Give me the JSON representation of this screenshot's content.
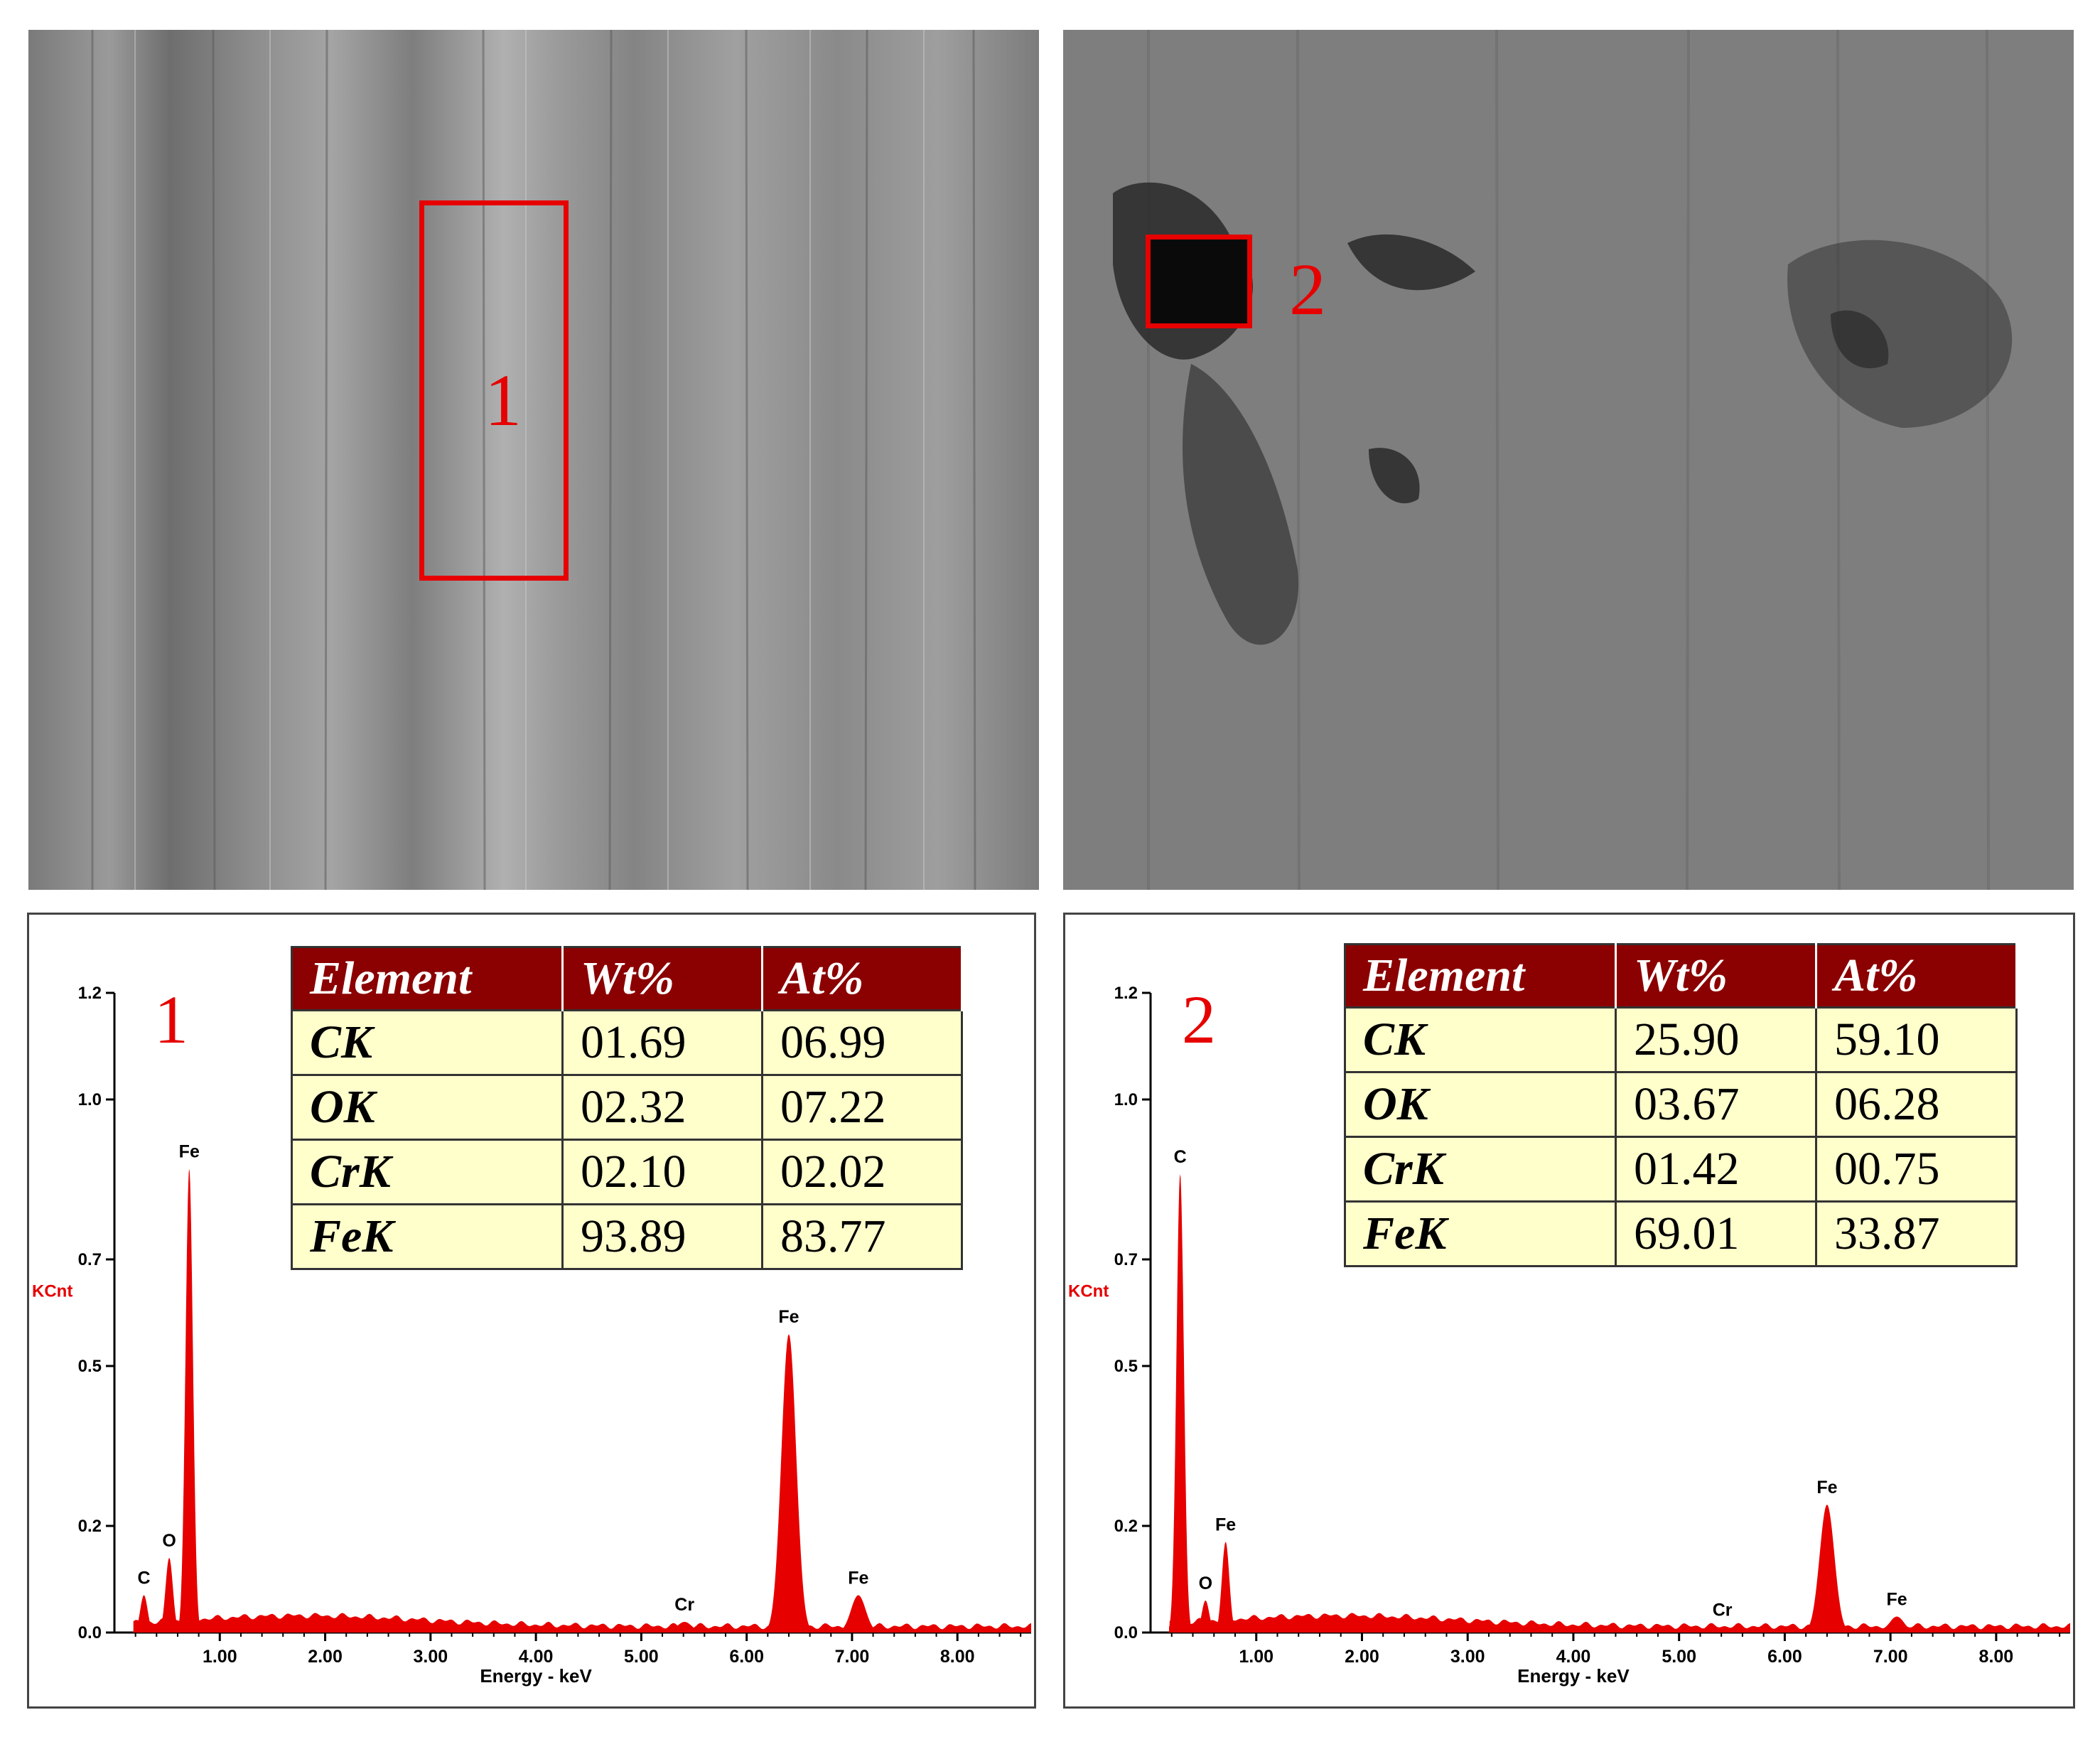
{
  "images": [
    {
      "roi_label": "1"
    },
    {
      "roi_label": "2"
    }
  ],
  "chart_data": [
    {
      "type": "bar",
      "panel_label": "1",
      "ylabel": "KCnt",
      "xlabel": "Energy - keV",
      "xlim": [
        0,
        8.7
      ],
      "ylim": [
        0,
        1.2
      ],
      "x_ticks": [
        "1.00",
        "2.00",
        "3.00",
        "4.00",
        "5.00",
        "6.00",
        "7.00",
        "8.00"
      ],
      "y_ticks": [
        "0.0",
        "0.2",
        "0.5",
        "0.7",
        "1.0",
        "1.2"
      ],
      "peaks": [
        {
          "element": "C",
          "energy": 0.28,
          "intensity": 0.07
        },
        {
          "element": "O",
          "energy": 0.52,
          "intensity": 0.14
        },
        {
          "element": "Fe",
          "energy": 0.71,
          "intensity": 0.87
        },
        {
          "element": "Cr",
          "energy": 5.41,
          "intensity": 0.02
        },
        {
          "element": "Fe",
          "energy": 6.4,
          "intensity": 0.56
        },
        {
          "element": "Fe",
          "energy": 7.06,
          "intensity": 0.07
        }
      ],
      "table": {
        "headers": [
          "Element",
          "Wt%",
          "At%"
        ],
        "rows": [
          [
            "CK",
            "01.69",
            "06.99"
          ],
          [
            "OK",
            "02.32",
            "07.22"
          ],
          [
            "CrK",
            "02.10",
            "02.02"
          ],
          [
            "FeK",
            "93.89",
            "83.77"
          ]
        ]
      }
    },
    {
      "type": "bar",
      "panel_label": "2",
      "ylabel": "KCnt",
      "xlabel": "Energy - keV",
      "xlim": [
        0,
        8.7
      ],
      "ylim": [
        0,
        1.2
      ],
      "x_ticks": [
        "1.00",
        "2.00",
        "3.00",
        "4.00",
        "5.00",
        "6.00",
        "7.00",
        "8.00"
      ],
      "y_ticks": [
        "0.0",
        "0.2",
        "0.5",
        "0.7",
        "1.0",
        "1.2"
      ],
      "peaks": [
        {
          "element": "C",
          "energy": 0.28,
          "intensity": 0.86
        },
        {
          "element": "O",
          "energy": 0.52,
          "intensity": 0.06
        },
        {
          "element": "Fe",
          "energy": 0.71,
          "intensity": 0.17
        },
        {
          "element": "Cr",
          "energy": 5.41,
          "intensity": 0.01
        },
        {
          "element": "Fe",
          "energy": 6.4,
          "intensity": 0.24
        },
        {
          "element": "Fe",
          "energy": 7.06,
          "intensity": 0.03
        }
      ],
      "table": {
        "headers": [
          "Element",
          "Wt%",
          "At%"
        ],
        "rows": [
          [
            "CK",
            "25.90",
            "59.10"
          ],
          [
            "OK",
            "03.67",
            "06.28"
          ],
          [
            "CrK",
            "01.42",
            "00.75"
          ],
          [
            "FeK",
            "69.01",
            "33.87"
          ]
        ]
      }
    }
  ],
  "colors": {
    "spectrum": "#e60000",
    "table_header": "#8b0000",
    "table_body": "#ffffcc"
  }
}
